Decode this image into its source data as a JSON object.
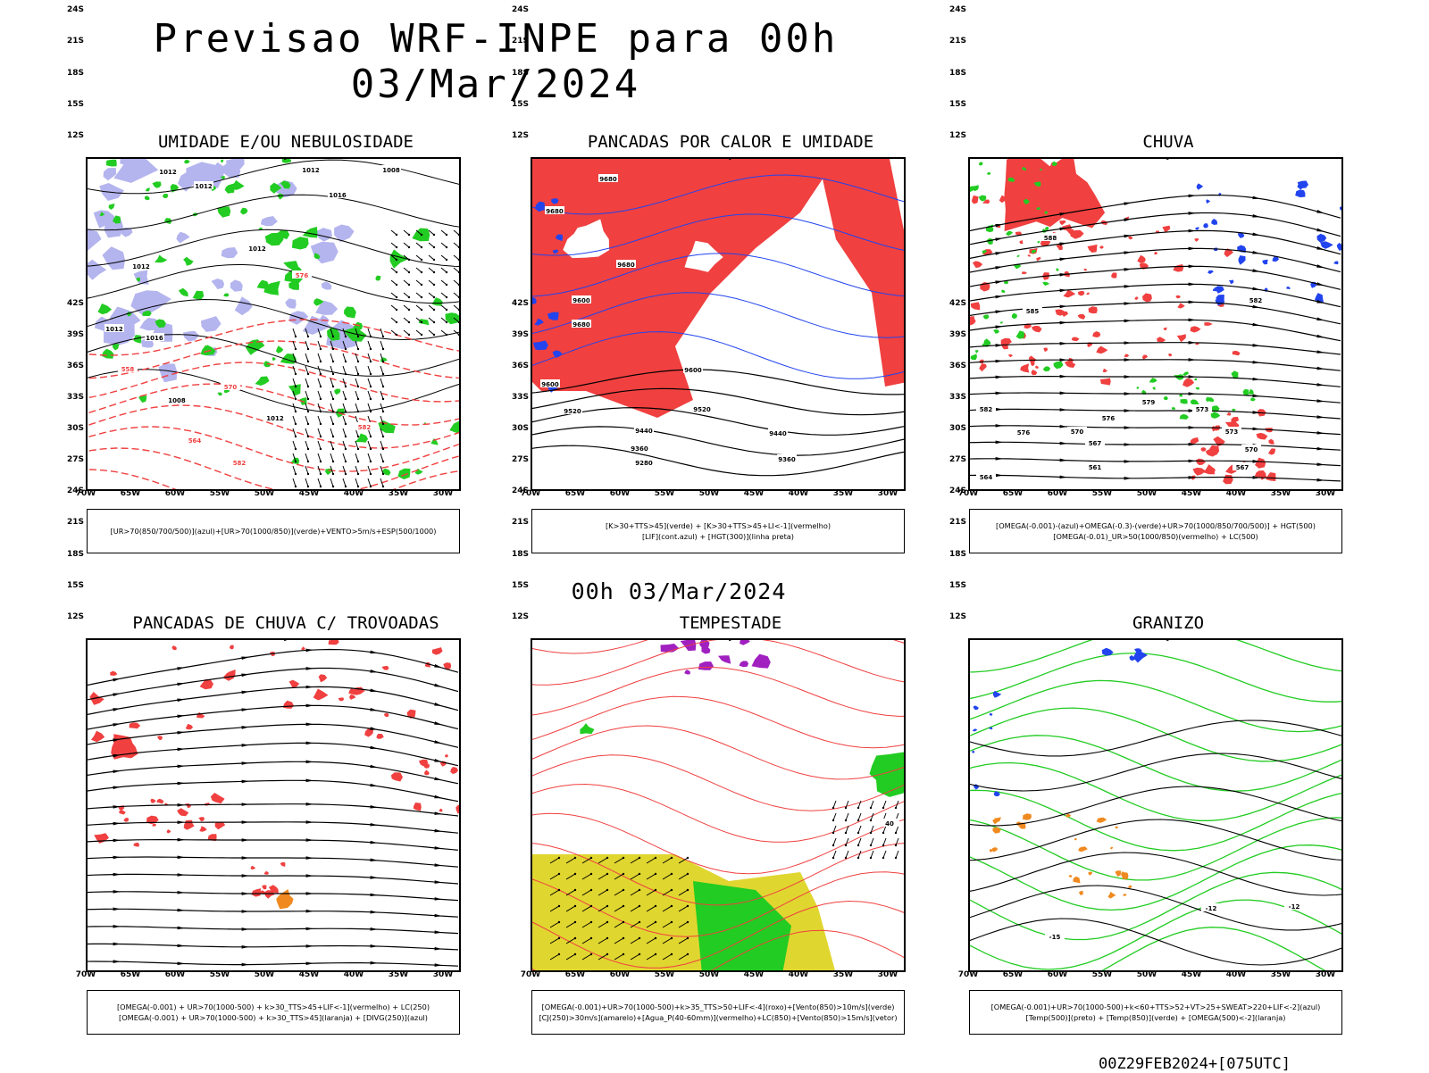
{
  "title": "Previsao WRF-INPE  para 00h 03/Mar/2024",
  "subtitle": "00h 03/Mar/2024",
  "footer": "00Z29FEB2024+[075UTC]",
  "axes": {
    "lat_labels": [
      "12S",
      "15S",
      "18S",
      "21S",
      "24S",
      "27S",
      "30S",
      "33S",
      "36S",
      "39S",
      "42S"
    ],
    "lon_labels": [
      "70W",
      "65W",
      "60W",
      "55W",
      "50W",
      "45W",
      "40W",
      "35W",
      "30W"
    ]
  },
  "colors": {
    "red": "#f04040",
    "green": "#22cc22",
    "blue": "#2244ee",
    "lavender": "#b4b4ee",
    "yellow": "#e0d630",
    "purple": "#a020c0",
    "orange": "#f08a20",
    "contour": "#000000"
  },
  "panels": [
    {
      "title": "UMIDADE E/OU NEBULOSIDADE",
      "legend": [
        "[UR>70(850/700/500)](azul)+[UR>70(1000/850)](verde)+VENTO>5m/s+ESP(500/1000)"
      ],
      "labels": [
        "1012",
        "1012",
        "1012",
        "1016",
        "1008",
        "1012",
        "1012",
        "1016",
        "1012",
        "1008",
        "1012",
        "582",
        "576",
        "570",
        "564",
        "558",
        "582"
      ]
    },
    {
      "title": "PANCADAS POR CALOR E UMIDADE",
      "legend": [
        "[K>30+TTS>45](verde) + [K>30+TTS>45+LI<-1](vermelho)",
        "[LIF](cont.azul) + [HGT(300)](linha preta)"
      ],
      "labels": [
        "9680",
        "9680",
        "9680",
        "9600",
        "9680",
        "9600",
        "9520",
        "9440",
        "9360",
        "9280",
        "9520",
        "9440",
        "9360",
        "9600"
      ]
    },
    {
      "title": "CHUVA",
      "legend": [
        "[OMEGA(-0.001)-(azul)+OMEGA(-0.3)-(verde)+UR>70(1000/850/700/500)] + HGT(500)",
        "[OMEGA(-0.01)_UR>50(1000/850)(vermelho) + LC(500)"
      ],
      "labels": [
        "588",
        "585",
        "582",
        "579",
        "576",
        "573",
        "570",
        "567",
        "561",
        "564",
        "582",
        "576",
        "573",
        "570",
        "567"
      ]
    },
    {
      "title": "PANCADAS DE CHUVA C/ TROVOADAS",
      "legend": [
        "[OMEGA(-0.001) + UR>70(1000-500) + k>30_TTS>45+LIF<-1](vermelho) + LC(250)",
        "[OMEGA(-0.001) + UR>70(1000-500) + k>30_TTS>45](laranja) + [DIVG(250)](azul)"
      ],
      "labels": []
    },
    {
      "title": "TEMPESTADE",
      "legend": [
        "[OMEGA(-0.001)+UR>70(1000-500)+k>35_TTS>50+LIF<-4](roxo)+[Vento(850)>10m/s](verde)",
        "[CJ(250)>30m/s](amarelo)+[Agua_P(40-60mm)](vermelho)+LC(850)+[Vento(850)>15m/s](vetor)"
      ],
      "labels": [
        "40"
      ]
    },
    {
      "title": "GRANIZO",
      "legend": [
        "[OMEGA(-0.001)+UR>70(1000-500)+k<60+TTS>52+VT>25+SWEAT>220+LIF<-2](azul)",
        "[Temp(500)](preto) + [Temp(850)](verde) + [OMEGA(500)<-2](laranja)"
      ],
      "labels": [
        "-12",
        "-15",
        "-12"
      ]
    }
  ]
}
